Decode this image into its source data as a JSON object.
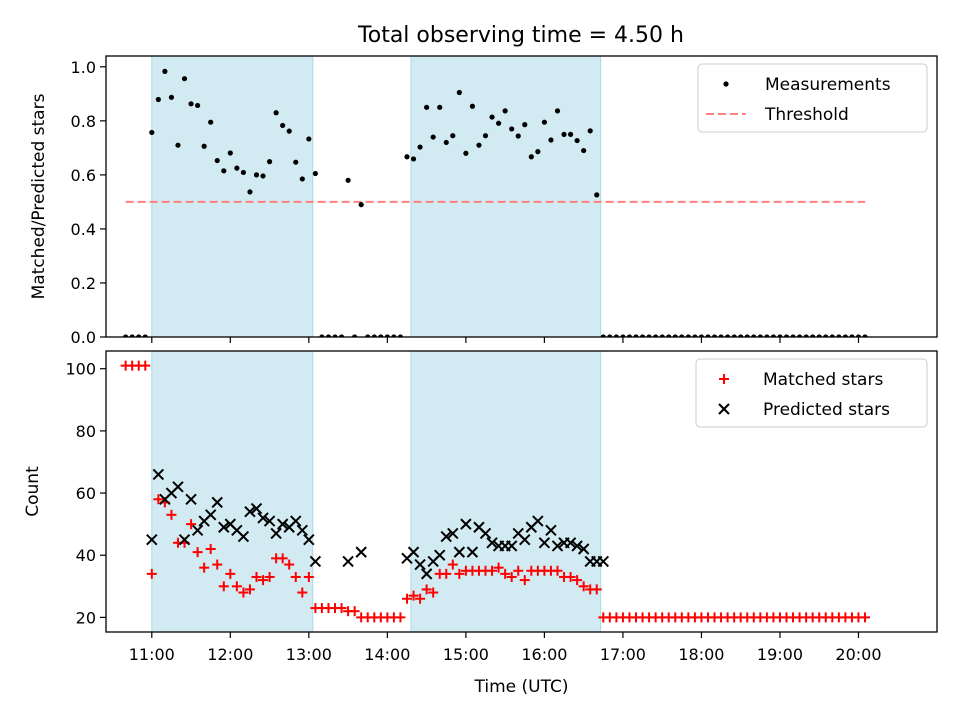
{
  "title": "Total observing time = 4.50 h",
  "colors": {
    "shade": "#add8e6",
    "measurements": "#000000",
    "threshold": "#ff7f7f",
    "matched": "#ff0000",
    "predicted": "#000000"
  },
  "chart_data": [
    {
      "type": "scatter",
      "ylabel": "Matched/Predicted stars",
      "xlim": [
        "10:25",
        "21:00"
      ],
      "ylim": [
        0,
        1.04
      ],
      "yticks": [
        0.0,
        0.2,
        0.4,
        0.6,
        0.8,
        1.0
      ],
      "ytick_labels": [
        "0.0",
        "0.2",
        "0.4",
        "0.6",
        "0.8",
        "1.0"
      ],
      "legend": {
        "placement": "top-right",
        "entries": [
          "Measurements",
          "Threshold"
        ]
      },
      "shaded_intervals": [
        [
          "11:00",
          "13:03"
        ],
        [
          "14:18",
          "16:43"
        ]
      ],
      "threshold": {
        "name": "Threshold",
        "y": 0.5,
        "x_range": [
          "10:40",
          "20:05"
        ]
      },
      "series": [
        {
          "name": "Measurements",
          "x": [
            "10:40",
            "10:45",
            "10:50",
            "10:55",
            "11:00",
            "11:05",
            "11:10",
            "11:15",
            "11:20",
            "11:25",
            "11:30",
            "11:35",
            "11:40",
            "11:45",
            "11:50",
            "11:55",
            "12:00",
            "12:05",
            "12:10",
            "12:15",
            "12:20",
            "12:25",
            "12:30",
            "12:35",
            "12:40",
            "12:45",
            "12:50",
            "12:55",
            "13:00",
            "13:05",
            "13:10",
            "13:15",
            "13:20",
            "13:25",
            "13:30",
            "13:35",
            "13:40",
            "13:45",
            "13:50",
            "13:55",
            "14:00",
            "14:05",
            "14:10",
            "14:15",
            "14:20",
            "14:25",
            "14:30",
            "14:35",
            "14:40",
            "14:45",
            "14:50",
            "14:55",
            "15:00",
            "15:05",
            "15:10",
            "15:15",
            "15:20",
            "15:25",
            "15:30",
            "15:35",
            "15:40",
            "15:45",
            "15:50",
            "15:55",
            "16:00",
            "16:05",
            "16:10",
            "16:15",
            "16:20",
            "16:25",
            "16:30",
            "16:35",
            "16:40",
            "16:45",
            "16:50",
            "16:55",
            "17:00",
            "17:05",
            "17:10",
            "17:15",
            "17:20",
            "17:25",
            "17:30",
            "17:35",
            "17:40",
            "17:45",
            "17:50",
            "17:55",
            "18:00",
            "18:05",
            "18:10",
            "18:15",
            "18:20",
            "18:25",
            "18:30",
            "18:35",
            "18:40",
            "18:45",
            "18:50",
            "18:55",
            "19:00",
            "19:05",
            "19:10",
            "19:15",
            "19:20",
            "19:25",
            "19:30",
            "19:35",
            "19:40",
            "19:45",
            "19:50",
            "19:55",
            "20:00",
            "20:05"
          ],
          "y": [
            0,
            0,
            0,
            0,
            0.757,
            0.879,
            0.983,
            0.887,
            0.71,
            0.956,
            0.863,
            0.857,
            0.706,
            0.795,
            0.653,
            0.615,
            0.681,
            0.625,
            0.609,
            0.537,
            0.6,
            0.596,
            0.649,
            0.83,
            0.783,
            0.762,
            0.647,
            0.585,
            0.733,
            0.605,
            0,
            0,
            0,
            0,
            0.58,
            0,
            0.49,
            0,
            0,
            0,
            0,
            0,
            0,
            0.667,
            0.659,
            0.703,
            0.85,
            0.74,
            0.85,
            0.72,
            0.745,
            0.905,
            0.68,
            0.854,
            0.71,
            0.745,
            0.814,
            0.791,
            0.837,
            0.77,
            0.744,
            0.786,
            0.667,
            0.686,
            0.795,
            0.729,
            0.837,
            0.75,
            0.75,
            0.727,
            0.69,
            0.763,
            0.526,
            0,
            0,
            0,
            0,
            0,
            0,
            0,
            0,
            0,
            0,
            0,
            0,
            0,
            0,
            0,
            0,
            0,
            0,
            0,
            0,
            0,
            0,
            0,
            0,
            0,
            0,
            0,
            0,
            0,
            0,
            0,
            0,
            0,
            0,
            0,
            0,
            0,
            0,
            0,
            0,
            0
          ]
        }
      ]
    },
    {
      "type": "scatter",
      "xlabel": "Time (UTC)",
      "ylabel": "Count",
      "xlim": [
        "10:25",
        "21:00"
      ],
      "ylim": [
        15.3,
        105.7
      ],
      "yticks": [
        20,
        40,
        60,
        80,
        100
      ],
      "ytick_labels": [
        "20",
        "40",
        "60",
        "80",
        "100"
      ],
      "xticks": [
        "11:00",
        "12:00",
        "13:00",
        "14:00",
        "15:00",
        "16:00",
        "17:00",
        "18:00",
        "19:00",
        "20:00"
      ],
      "xtick_labels": [
        "11:00",
        "12:00",
        "13:00",
        "14:00",
        "15:00",
        "16:00",
        "17:00",
        "18:00",
        "19:00",
        "20:00"
      ],
      "legend": {
        "placement": "top-right",
        "entries": [
          "Matched stars",
          "Predicted stars"
        ]
      },
      "shaded_intervals": [
        [
          "11:00",
          "13:03"
        ],
        [
          "14:18",
          "16:43"
        ]
      ],
      "series": [
        {
          "name": "Matched stars",
          "marker": "plus",
          "x": [
            "10:40",
            "10:45",
            "10:50",
            "10:55",
            "11:00",
            "11:05",
            "11:10",
            "11:15",
            "11:20",
            "11:25",
            "11:30",
            "11:35",
            "11:40",
            "11:45",
            "11:50",
            "11:55",
            "12:00",
            "12:05",
            "12:10",
            "12:15",
            "12:20",
            "12:25",
            "12:30",
            "12:35",
            "12:40",
            "12:45",
            "12:50",
            "12:55",
            "13:00",
            "13:05",
            "13:10",
            "13:15",
            "13:20",
            "13:25",
            "13:30",
            "13:35",
            "13:40",
            "13:45",
            "13:50",
            "13:55",
            "14:00",
            "14:05",
            "14:10",
            "14:15",
            "14:20",
            "14:25",
            "14:30",
            "14:35",
            "14:40",
            "14:45",
            "14:50",
            "14:55",
            "15:00",
            "15:05",
            "15:10",
            "15:15",
            "15:20",
            "15:25",
            "15:30",
            "15:35",
            "15:40",
            "15:45",
            "15:50",
            "15:55",
            "16:00",
            "16:05",
            "16:10",
            "16:15",
            "16:20",
            "16:25",
            "16:30",
            "16:35",
            "16:40",
            "16:45",
            "16:50",
            "16:55",
            "17:00",
            "17:05",
            "17:10",
            "17:15",
            "17:20",
            "17:25",
            "17:30",
            "17:35",
            "17:40",
            "17:45",
            "17:50",
            "17:55",
            "18:00",
            "18:05",
            "18:10",
            "18:15",
            "18:20",
            "18:25",
            "18:30",
            "18:35",
            "18:40",
            "18:45",
            "18:50",
            "18:55",
            "19:00",
            "19:05",
            "19:10",
            "19:15",
            "19:20",
            "19:25",
            "19:30",
            "19:35",
            "19:40",
            "19:45",
            "19:50",
            "19:55",
            "20:00",
            "20:05"
          ],
          "y": [
            101,
            101,
            101,
            101,
            34,
            58,
            57,
            53,
            44,
            44,
            50,
            41,
            36,
            42,
            37,
            30,
            34,
            30,
            28,
            29,
            33,
            32,
            33,
            39,
            39,
            37,
            33,
            28,
            33,
            23,
            23,
            23,
            23,
            23,
            22,
            22,
            20,
            20,
            20,
            20,
            20,
            20,
            20,
            26,
            27,
            26,
            29,
            28,
            34,
            34,
            37,
            34,
            35,
            35,
            35,
            35,
            35,
            36,
            34,
            33,
            35,
            32,
            35,
            35,
            35,
            35,
            35,
            33,
            33,
            32,
            30,
            29,
            29,
            20,
            20,
            20,
            20,
            20,
            20,
            20,
            20,
            20,
            20,
            20,
            20,
            20,
            20,
            20,
            20,
            20,
            20,
            20,
            20,
            20,
            20,
            20,
            20,
            20,
            20,
            20,
            20,
            20,
            20,
            20,
            20,
            20,
            20,
            20,
            20,
            20,
            20,
            20,
            20,
            20
          ]
        },
        {
          "name": "Predicted stars",
          "marker": "x",
          "x": [
            "11:00",
            "11:05",
            "11:10",
            "11:15",
            "11:20",
            "11:25",
            "11:30",
            "11:35",
            "11:40",
            "11:45",
            "11:50",
            "11:55",
            "12:00",
            "12:05",
            "12:10",
            "12:15",
            "12:20",
            "12:25",
            "12:30",
            "12:35",
            "12:40",
            "12:45",
            "12:50",
            "12:55",
            "13:00",
            "13:05",
            "13:30",
            "13:40",
            "14:15",
            "14:20",
            "14:25",
            "14:30",
            "14:35",
            "14:40",
            "14:45",
            "14:50",
            "14:55",
            "15:00",
            "15:05",
            "15:10",
            "15:15",
            "15:20",
            "15:25",
            "15:30",
            "15:35",
            "15:40",
            "15:45",
            "15:50",
            "15:55",
            "16:00",
            "16:05",
            "16:10",
            "16:15",
            "16:20",
            "16:25",
            "16:30",
            "16:35",
            "16:40",
            "16:45"
          ],
          "y": [
            45,
            66,
            58,
            60,
            62,
            45,
            58,
            48,
            51,
            53,
            57,
            49,
            50,
            48,
            46,
            54,
            55,
            52,
            51,
            47,
            50,
            49,
            51,
            48,
            45,
            38,
            38,
            41,
            39,
            41,
            37,
            34,
            38,
            40,
            46,
            47,
            41,
            50,
            41,
            49,
            47,
            44,
            43,
            43,
            43,
            47,
            45,
            49,
            51,
            44,
            48,
            43,
            44,
            44,
            43,
            42,
            38,
            38,
            38
          ]
        }
      ]
    }
  ]
}
